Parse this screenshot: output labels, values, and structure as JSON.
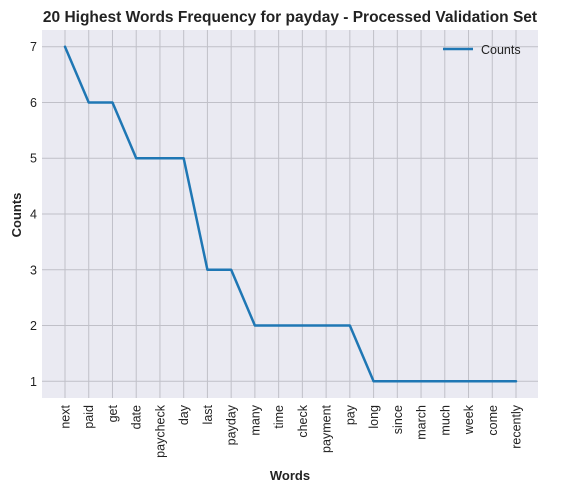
{
  "chart_data": {
    "type": "line",
    "title": "20 Highest Words Frequency for payday - Processed Validation Set",
    "xlabel": "Words",
    "ylabel": "Counts",
    "categories": [
      "next",
      "paid",
      "get",
      "date",
      "paycheck",
      "day",
      "last",
      "payday",
      "many",
      "time",
      "check",
      "payment",
      "pay",
      "long",
      "since",
      "march",
      "much",
      "week",
      "come",
      "recently"
    ],
    "series": [
      {
        "name": "Counts",
        "values": [
          7,
          6,
          6,
          5,
          5,
          5,
          3,
          3,
          2,
          2,
          2,
          2,
          2,
          1,
          1,
          1,
          1,
          1,
          1,
          1
        ]
      }
    ],
    "yticks": [
      1,
      2,
      3,
      4,
      5,
      6,
      7
    ],
    "ylim": [
      0.7,
      7.3
    ],
    "grid": true,
    "legend_position": "top-right",
    "colors": {
      "line": "#1f77b4",
      "plot_bg": "#eaeaf2",
      "grid": "#c0c0c8"
    }
  }
}
